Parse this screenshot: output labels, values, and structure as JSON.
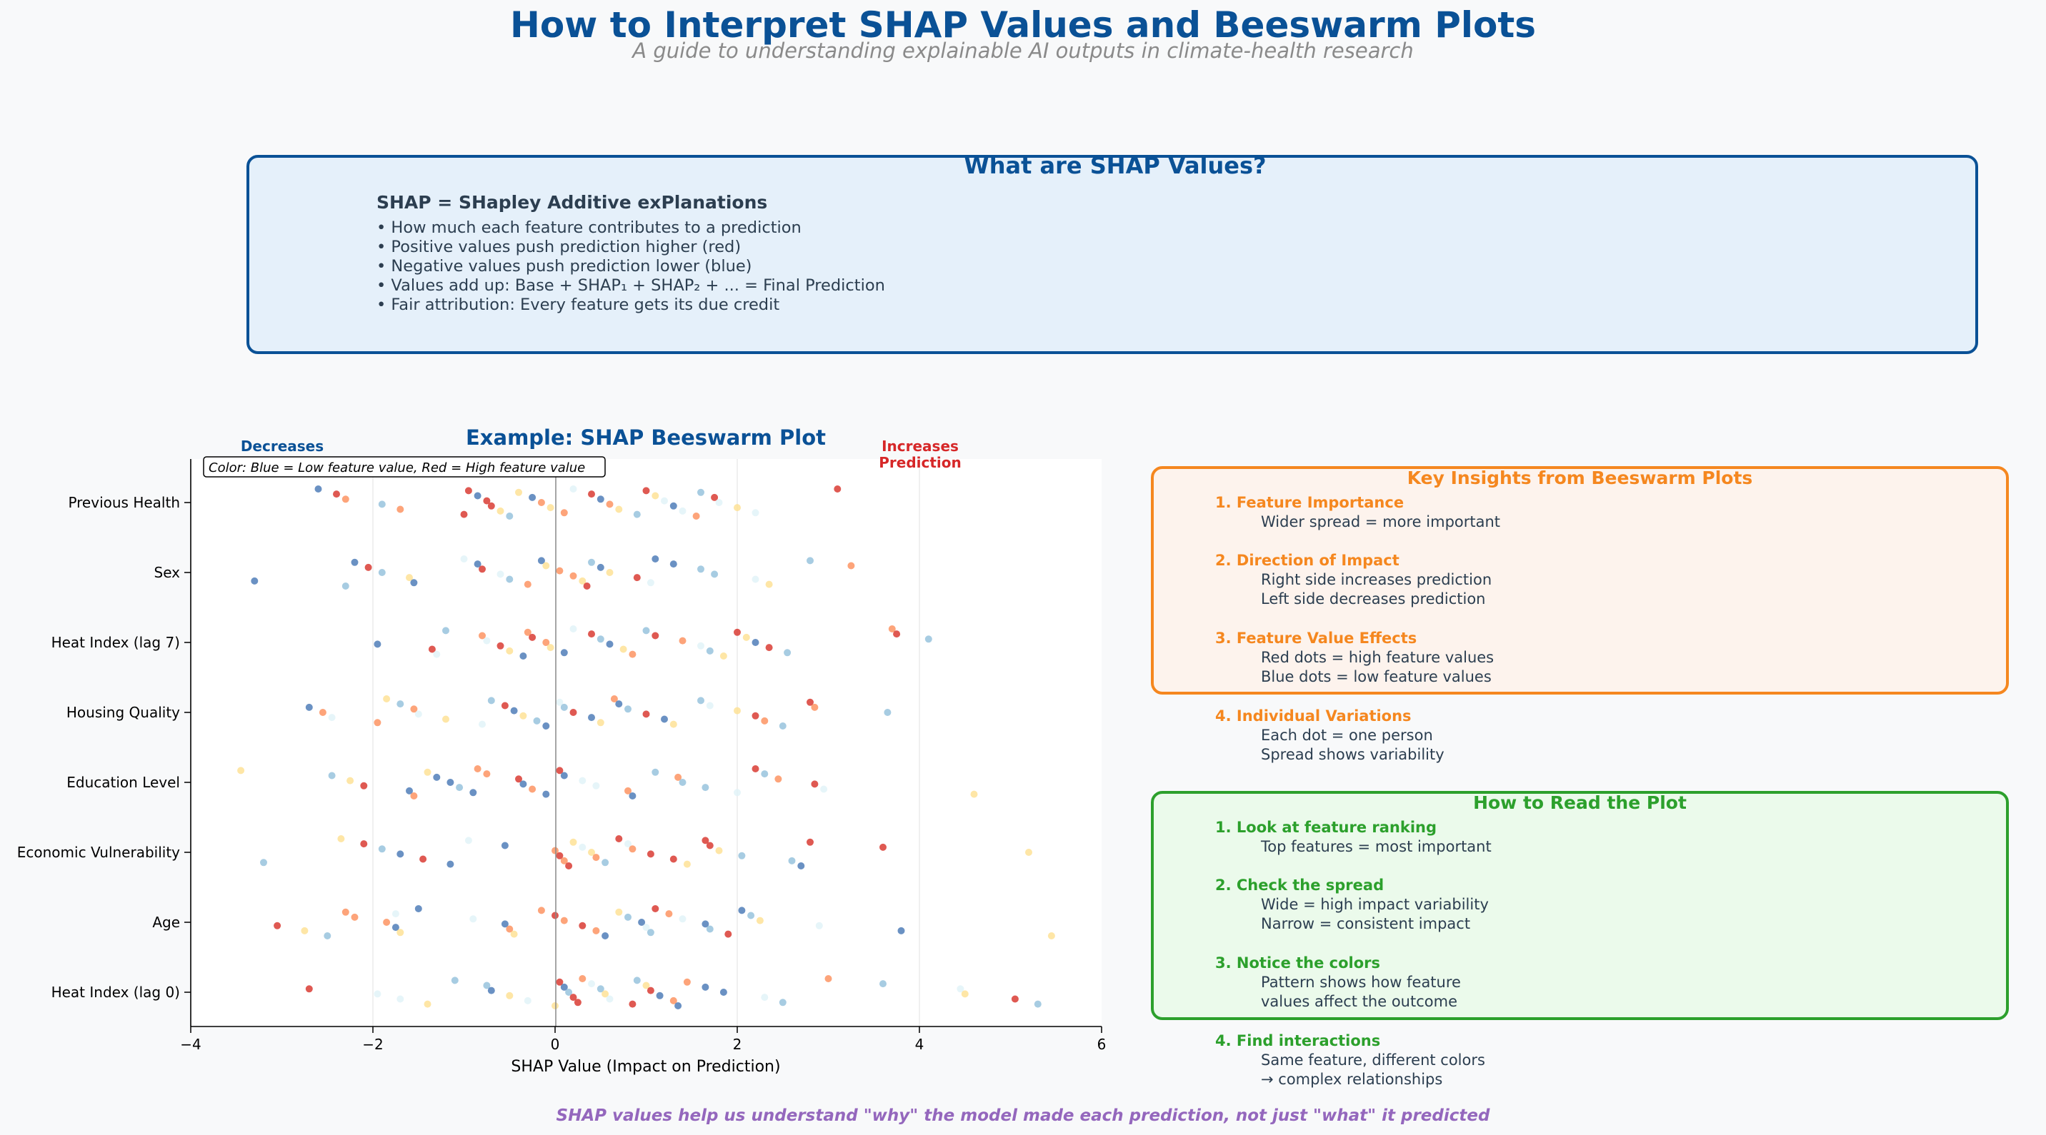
{
  "title": "How to Interpret SHAP Values and Beeswarm Plots",
  "subtitle": "A guide to understanding explainable AI outputs in climate-health research",
  "shap_box": {
    "title": "What are SHAP Values?",
    "heading": "SHAP = SHapley Additive exPlanations",
    "bullets": [
      "• How much each feature contributes to a prediction",
      "• Positive values push prediction higher (red)",
      "• Negative values push prediction lower (blue)",
      "• Values add up: Base + SHAP₁ + SHAP₂ + ... = Final Prediction",
      "• Fair attribution: Every feature gets its due credit"
    ]
  },
  "colors": {
    "accent": "#0a5196",
    "orange": "#f5871f",
    "green": "#2ca02c",
    "purple": "#9467bd",
    "red": "#d62728"
  },
  "chart_data": {
    "type": "scatter",
    "subtype": "beeswarm",
    "title": "Example: SHAP Beeswarm Plot",
    "xlabel": "SHAP Value (Impact on Prediction)",
    "ylabel": "",
    "xlim": [
      -4,
      6
    ],
    "xticks": [
      -4,
      -2,
      0,
      2,
      4,
      6
    ],
    "xtick_labels": [
      "−4",
      "−2",
      "0",
      "2",
      "4",
      "6"
    ],
    "grid": "vertical",
    "color_note": "Color: Blue = Low feature value, Red = High feature value",
    "annotation_left": "Decreases",
    "annotation_right": [
      "Increases",
      "Prediction"
    ],
    "colormap": [
      "#4575b4",
      "#91bfdb",
      "#e0f3f8",
      "#fee090",
      "#fc8d59",
      "#d73027"
    ],
    "features": [
      {
        "name": "Previous Health",
        "points": [
          [
            -2.6,
            0
          ],
          [
            -2.4,
            5
          ],
          [
            -2.3,
            4
          ],
          [
            -1.9,
            1
          ],
          [
            -1.7,
            4
          ],
          [
            -1.0,
            5
          ],
          [
            -0.95,
            5
          ],
          [
            -0.85,
            0
          ],
          [
            -0.75,
            5
          ],
          [
            -0.7,
            5
          ],
          [
            -0.6,
            3
          ],
          [
            -0.5,
            1
          ],
          [
            -0.4,
            3
          ],
          [
            -0.25,
            0
          ],
          [
            -0.15,
            4
          ],
          [
            -0.05,
            3
          ],
          [
            0.1,
            4
          ],
          [
            0.2,
            2
          ],
          [
            0.4,
            5
          ],
          [
            0.5,
            0
          ],
          [
            0.6,
            4
          ],
          [
            0.7,
            3
          ],
          [
            0.9,
            1
          ],
          [
            1.0,
            5
          ],
          [
            1.1,
            3
          ],
          [
            1.2,
            2
          ],
          [
            1.3,
            0
          ],
          [
            1.4,
            2
          ],
          [
            1.55,
            4
          ],
          [
            1.6,
            1
          ],
          [
            1.75,
            5
          ],
          [
            1.8,
            2
          ],
          [
            2.0,
            3
          ],
          [
            2.2,
            2
          ],
          [
            3.1,
            5
          ]
        ]
      },
      {
        "name": "Sex",
        "points": [
          [
            -3.3,
            0
          ],
          [
            -2.3,
            1
          ],
          [
            -2.2,
            0
          ],
          [
            -2.05,
            5
          ],
          [
            -1.9,
            1
          ],
          [
            -1.6,
            3
          ],
          [
            -1.55,
            0
          ],
          [
            -1.0,
            2
          ],
          [
            -0.85,
            0
          ],
          [
            -0.8,
            5
          ],
          [
            -0.6,
            2
          ],
          [
            -0.5,
            1
          ],
          [
            -0.3,
            4
          ],
          [
            -0.15,
            0
          ],
          [
            -0.1,
            3
          ],
          [
            0.05,
            4
          ],
          [
            0.2,
            4
          ],
          [
            0.3,
            3
          ],
          [
            0.35,
            5
          ],
          [
            0.4,
            1
          ],
          [
            0.5,
            0
          ],
          [
            0.6,
            3
          ],
          [
            0.9,
            5
          ],
          [
            1.05,
            2
          ],
          [
            1.1,
            0
          ],
          [
            1.3,
            0
          ],
          [
            1.6,
            1
          ],
          [
            1.75,
            1
          ],
          [
            2.2,
            2
          ],
          [
            2.35,
            3
          ],
          [
            2.8,
            1
          ],
          [
            3.25,
            4
          ]
        ]
      },
      {
        "name": "Heat Index (lag 7)",
        "points": [
          [
            -1.95,
            0
          ],
          [
            -1.35,
            5
          ],
          [
            -1.3,
            2
          ],
          [
            -1.2,
            1
          ],
          [
            -0.8,
            4
          ],
          [
            -0.75,
            2
          ],
          [
            -0.6,
            5
          ],
          [
            -0.5,
            3
          ],
          [
            -0.35,
            0
          ],
          [
            -0.3,
            4
          ],
          [
            -0.25,
            5
          ],
          [
            -0.1,
            4
          ],
          [
            -0.05,
            3
          ],
          [
            0.1,
            0
          ],
          [
            0.2,
            2
          ],
          [
            0.4,
            5
          ],
          [
            0.5,
            1
          ],
          [
            0.6,
            0
          ],
          [
            0.75,
            3
          ],
          [
            0.85,
            4
          ],
          [
            1.0,
            1
          ],
          [
            1.1,
            5
          ],
          [
            1.4,
            4
          ],
          [
            1.6,
            2
          ],
          [
            1.7,
            1
          ],
          [
            1.85,
            3
          ],
          [
            2.0,
            5
          ],
          [
            2.1,
            3
          ],
          [
            2.2,
            0
          ],
          [
            2.35,
            5
          ],
          [
            2.55,
            1
          ],
          [
            3.7,
            4
          ],
          [
            3.75,
            5
          ],
          [
            4.1,
            1
          ]
        ]
      },
      {
        "name": "Housing Quality",
        "points": [
          [
            -2.7,
            0
          ],
          [
            -2.55,
            4
          ],
          [
            -2.45,
            2
          ],
          [
            -1.95,
            4
          ],
          [
            -1.85,
            3
          ],
          [
            -1.7,
            1
          ],
          [
            -1.55,
            4
          ],
          [
            -1.5,
            2
          ],
          [
            -1.2,
            3
          ],
          [
            -0.8,
            2
          ],
          [
            -0.7,
            1
          ],
          [
            -0.55,
            5
          ],
          [
            -0.45,
            0
          ],
          [
            -0.35,
            3
          ],
          [
            -0.2,
            1
          ],
          [
            -0.1,
            0
          ],
          [
            0.05,
            2
          ],
          [
            0.1,
            1
          ],
          [
            0.2,
            5
          ],
          [
            0.4,
            0
          ],
          [
            0.5,
            3
          ],
          [
            0.65,
            4
          ],
          [
            0.7,
            0
          ],
          [
            0.8,
            1
          ],
          [
            1.0,
            5
          ],
          [
            1.2,
            0
          ],
          [
            1.3,
            3
          ],
          [
            1.6,
            1
          ],
          [
            1.7,
            2
          ],
          [
            2.0,
            3
          ],
          [
            2.2,
            5
          ],
          [
            2.3,
            4
          ],
          [
            2.5,
            1
          ],
          [
            2.8,
            5
          ],
          [
            2.85,
            4
          ],
          [
            3.65,
            1
          ]
        ]
      },
      {
        "name": "Education Level",
        "points": [
          [
            -3.45,
            3
          ],
          [
            -2.45,
            1
          ],
          [
            -2.25,
            3
          ],
          [
            -2.1,
            5
          ],
          [
            -1.6,
            0
          ],
          [
            -1.55,
            4
          ],
          [
            -1.4,
            3
          ],
          [
            -1.3,
            0
          ],
          [
            -1.15,
            0
          ],
          [
            -1.05,
            1
          ],
          [
            -0.9,
            0
          ],
          [
            -0.85,
            4
          ],
          [
            -0.75,
            4
          ],
          [
            -0.4,
            5
          ],
          [
            -0.35,
            0
          ],
          [
            -0.25,
            4
          ],
          [
            -0.1,
            0
          ],
          [
            0.05,
            5
          ],
          [
            0.1,
            0
          ],
          [
            0.3,
            2
          ],
          [
            0.45,
            2
          ],
          [
            0.8,
            4
          ],
          [
            0.85,
            0
          ],
          [
            1.1,
            1
          ],
          [
            1.35,
            4
          ],
          [
            1.4,
            1
          ],
          [
            1.65,
            1
          ],
          [
            2.0,
            2
          ],
          [
            2.2,
            5
          ],
          [
            2.3,
            1
          ],
          [
            2.45,
            4
          ],
          [
            2.85,
            5
          ],
          [
            2.95,
            2
          ],
          [
            4.6,
            3
          ]
        ]
      },
      {
        "name": "Economic Vulnerability",
        "points": [
          [
            -3.2,
            1
          ],
          [
            -2.35,
            3
          ],
          [
            -2.1,
            5
          ],
          [
            -1.9,
            1
          ],
          [
            -1.7,
            0
          ],
          [
            -1.45,
            5
          ],
          [
            -1.15,
            0
          ],
          [
            -0.95,
            2
          ],
          [
            -0.55,
            0
          ],
          [
            0.0,
            4
          ],
          [
            0.05,
            5
          ],
          [
            0.1,
            4
          ],
          [
            0.15,
            5
          ],
          [
            0.2,
            3
          ],
          [
            0.3,
            2
          ],
          [
            0.4,
            3
          ],
          [
            0.45,
            4
          ],
          [
            0.55,
            1
          ],
          [
            0.7,
            5
          ],
          [
            0.8,
            2
          ],
          [
            0.85,
            4
          ],
          [
            1.05,
            5
          ],
          [
            1.3,
            5
          ],
          [
            1.45,
            3
          ],
          [
            1.65,
            5
          ],
          [
            1.7,
            5
          ],
          [
            1.8,
            3
          ],
          [
            2.05,
            1
          ],
          [
            2.6,
            1
          ],
          [
            2.7,
            0
          ],
          [
            2.8,
            5
          ],
          [
            3.6,
            5
          ],
          [
            5.2,
            3
          ]
        ]
      },
      {
        "name": "Age",
        "points": [
          [
            -3.05,
            5
          ],
          [
            -2.75,
            3
          ],
          [
            -2.5,
            1
          ],
          [
            -2.3,
            4
          ],
          [
            -2.2,
            4
          ],
          [
            -1.85,
            4
          ],
          [
            -1.75,
            0
          ],
          [
            -1.7,
            3
          ],
          [
            -1.5,
            0
          ],
          [
            -1.75,
            2
          ],
          [
            -0.9,
            2
          ],
          [
            -0.55,
            0
          ],
          [
            -0.5,
            4
          ],
          [
            -0.45,
            3
          ],
          [
            -0.15,
            4
          ],
          [
            0.0,
            5
          ],
          [
            0.1,
            4
          ],
          [
            0.3,
            5
          ],
          [
            0.45,
            4
          ],
          [
            0.55,
            0
          ],
          [
            0.7,
            3
          ],
          [
            0.8,
            1
          ],
          [
            0.95,
            0
          ],
          [
            1.0,
            2
          ],
          [
            1.05,
            1
          ],
          [
            1.1,
            5
          ],
          [
            1.25,
            4
          ],
          [
            1.4,
            2
          ],
          [
            1.65,
            0
          ],
          [
            1.7,
            1
          ],
          [
            1.9,
            5
          ],
          [
            2.05,
            0
          ],
          [
            2.15,
            1
          ],
          [
            2.25,
            3
          ],
          [
            2.9,
            2
          ],
          [
            3.8,
            0
          ],
          [
            5.45,
            3
          ]
        ]
      },
      {
        "name": "Heat Index (lag 0)",
        "points": [
          [
            -2.7,
            5
          ],
          [
            -1.95,
            2
          ],
          [
            -1.7,
            2
          ],
          [
            -1.4,
            3
          ],
          [
            -1.1,
            1
          ],
          [
            -0.75,
            1
          ],
          [
            -0.7,
            0
          ],
          [
            -0.5,
            3
          ],
          [
            -0.3,
            2
          ],
          [
            0.0,
            3
          ],
          [
            0.05,
            5
          ],
          [
            0.1,
            0
          ],
          [
            0.15,
            1
          ],
          [
            0.2,
            5
          ],
          [
            0.25,
            5
          ],
          [
            0.3,
            4
          ],
          [
            0.4,
            2
          ],
          [
            0.5,
            1
          ],
          [
            0.55,
            3
          ],
          [
            0.6,
            2
          ],
          [
            0.85,
            5
          ],
          [
            0.9,
            1
          ],
          [
            1.0,
            3
          ],
          [
            1.05,
            5
          ],
          [
            1.15,
            0
          ],
          [
            1.3,
            4
          ],
          [
            1.35,
            0
          ],
          [
            1.45,
            4
          ],
          [
            1.65,
            0
          ],
          [
            1.85,
            0
          ],
          [
            2.3,
            2
          ],
          [
            2.5,
            1
          ],
          [
            3.0,
            4
          ],
          [
            3.6,
            1
          ],
          [
            4.45,
            2
          ],
          [
            4.5,
            3
          ],
          [
            5.05,
            5
          ],
          [
            5.3,
            1
          ]
        ]
      }
    ]
  },
  "insights": {
    "title": "Key Insights from Beeswarm Plots",
    "items": [
      {
        "heading": "1. Feature Importance",
        "lines": [
          "Wider spread = more important"
        ]
      },
      {
        "heading": "2. Direction of Impact",
        "lines": [
          "Right side increases prediction",
          "Left side decreases prediction"
        ]
      },
      {
        "heading": "3. Feature Value Effects",
        "lines": [
          "Red dots = high feature values",
          "Blue dots = low feature values"
        ]
      },
      {
        "heading": "4. Individual Variations",
        "lines": [
          "Each dot = one person",
          "Spread shows variability"
        ]
      }
    ]
  },
  "how_to_read": {
    "title": "How to Read the Plot",
    "items": [
      {
        "heading": "1. Look at feature ranking",
        "lines": [
          "Top features = most important"
        ]
      },
      {
        "heading": "2. Check the spread",
        "lines": [
          "Wide = high impact variability",
          "Narrow = consistent impact"
        ]
      },
      {
        "heading": "3. Notice the colors",
        "lines": [
          "Pattern shows how feature",
          "values affect the outcome"
        ]
      },
      {
        "heading": "4. Find interactions",
        "lines": [
          "Same feature, different colors",
          "→ complex relationships"
        ]
      }
    ]
  },
  "footer": "SHAP values help us understand \"why\" the model made each prediction, not just \"what\" it predicted"
}
